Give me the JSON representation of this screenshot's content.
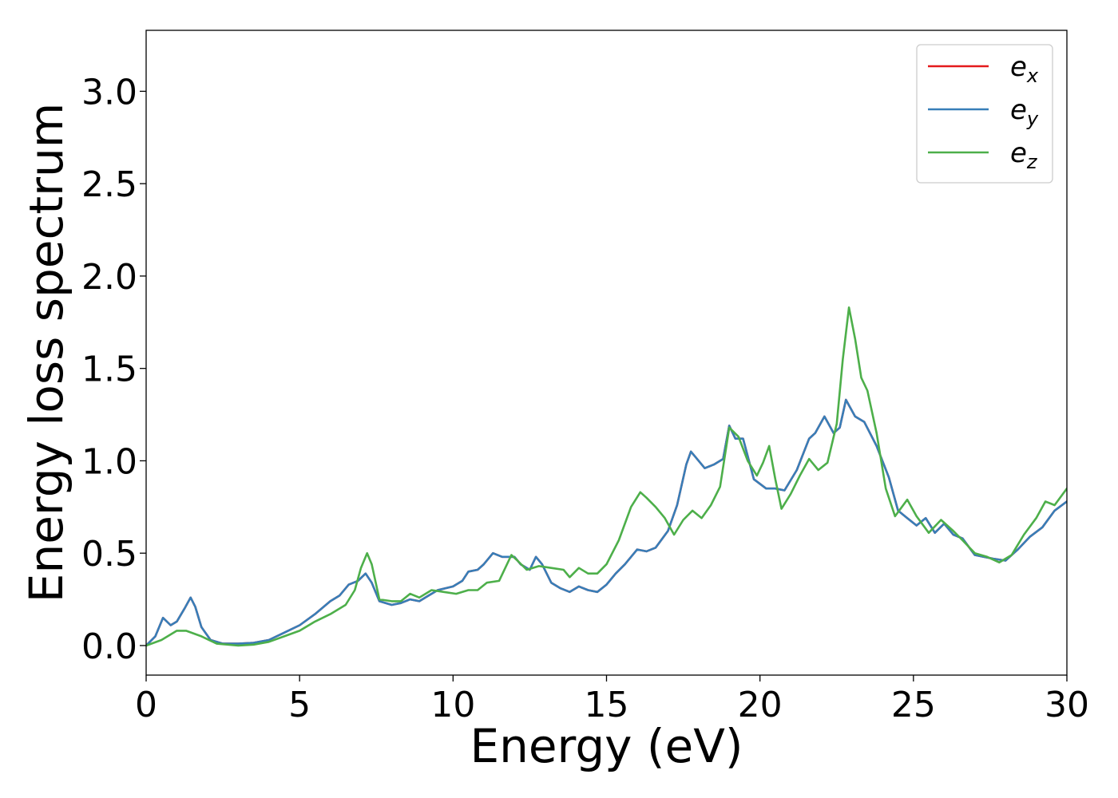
{
  "chart_data": {
    "type": "line",
    "title": "",
    "xlabel": "Energy (eV)",
    "ylabel": "Energy loss spectrum",
    "xlim": [
      0,
      30
    ],
    "ylim": [
      -0.16,
      3.33
    ],
    "xticks": [
      0,
      5,
      10,
      15,
      20,
      25,
      30
    ],
    "xtick_labels": [
      "0",
      "5",
      "10",
      "15",
      "20",
      "25",
      "30"
    ],
    "yticks": [
      0.0,
      0.5,
      1.0,
      1.5,
      2.0,
      2.5,
      3.0
    ],
    "ytick_labels": [
      "0.0",
      "0.5",
      "1.0",
      "1.5",
      "2.0",
      "2.5",
      "3.0"
    ],
    "grid": false,
    "legend_position": "top-right",
    "series": [
      {
        "name": "e_x",
        "legend_main": "e",
        "legend_sub": "x",
        "color": "#e41a1c",
        "points": [
          [
            0,
            0
          ],
          [
            0.3,
            0.05
          ],
          [
            0.55,
            0.15
          ],
          [
            0.8,
            0.11
          ],
          [
            1.0,
            0.13
          ],
          [
            1.25,
            0.2
          ],
          [
            1.45,
            0.26
          ],
          [
            1.6,
            0.21
          ],
          [
            1.8,
            0.1
          ],
          [
            2.1,
            0.03
          ],
          [
            2.5,
            0.01
          ],
          [
            3.0,
            0.01
          ],
          [
            3.5,
            0.015
          ],
          [
            4.0,
            0.03
          ],
          [
            4.5,
            0.07
          ],
          [
            5.0,
            0.11
          ],
          [
            5.5,
            0.17
          ],
          [
            6.0,
            0.24
          ],
          [
            6.3,
            0.27
          ],
          [
            6.6,
            0.33
          ],
          [
            6.9,
            0.35
          ],
          [
            7.15,
            0.39
          ],
          [
            7.35,
            0.34
          ],
          [
            7.6,
            0.24
          ],
          [
            8.0,
            0.22
          ],
          [
            8.3,
            0.23
          ],
          [
            8.6,
            0.25
          ],
          [
            8.9,
            0.24
          ],
          [
            9.2,
            0.27
          ],
          [
            9.5,
            0.3
          ],
          [
            10.0,
            0.32
          ],
          [
            10.3,
            0.35
          ],
          [
            10.5,
            0.4
          ],
          [
            10.8,
            0.41
          ],
          [
            11.0,
            0.44
          ],
          [
            11.3,
            0.5
          ],
          [
            11.6,
            0.48
          ],
          [
            12.0,
            0.48
          ],
          [
            12.2,
            0.44
          ],
          [
            12.5,
            0.41
          ],
          [
            12.7,
            0.48
          ],
          [
            12.9,
            0.44
          ],
          [
            13.2,
            0.34
          ],
          [
            13.5,
            0.31
          ],
          [
            13.8,
            0.29
          ],
          [
            14.1,
            0.32
          ],
          [
            14.4,
            0.3
          ],
          [
            14.7,
            0.29
          ],
          [
            15.0,
            0.33
          ],
          [
            15.3,
            0.39
          ],
          [
            15.6,
            0.44
          ],
          [
            16.0,
            0.52
          ],
          [
            16.3,
            0.51
          ],
          [
            16.6,
            0.53
          ],
          [
            17.0,
            0.62
          ],
          [
            17.3,
            0.76
          ],
          [
            17.6,
            0.98
          ],
          [
            17.75,
            1.05
          ],
          [
            17.9,
            1.02
          ],
          [
            18.2,
            0.96
          ],
          [
            18.5,
            0.98
          ],
          [
            18.8,
            1.01
          ],
          [
            19.0,
            1.19
          ],
          [
            19.2,
            1.12
          ],
          [
            19.45,
            1.12
          ],
          [
            19.8,
            0.9
          ],
          [
            20.2,
            0.85
          ],
          [
            20.5,
            0.85
          ],
          [
            20.8,
            0.84
          ],
          [
            21.2,
            0.95
          ],
          [
            21.6,
            1.12
          ],
          [
            21.8,
            1.15
          ],
          [
            22.1,
            1.24
          ],
          [
            22.4,
            1.15
          ],
          [
            22.6,
            1.18
          ],
          [
            22.8,
            1.33
          ],
          [
            23.1,
            1.24
          ],
          [
            23.4,
            1.21
          ],
          [
            23.8,
            1.08
          ],
          [
            24.2,
            0.91
          ],
          [
            24.5,
            0.73
          ],
          [
            24.8,
            0.69
          ],
          [
            25.1,
            0.65
          ],
          [
            25.4,
            0.69
          ],
          [
            25.7,
            0.61
          ],
          [
            26.0,
            0.66
          ],
          [
            26.3,
            0.6
          ],
          [
            26.6,
            0.58
          ],
          [
            27.0,
            0.49
          ],
          [
            27.3,
            0.48
          ],
          [
            27.6,
            0.47
          ],
          [
            28.0,
            0.46
          ],
          [
            28.4,
            0.52
          ],
          [
            28.8,
            0.59
          ],
          [
            29.2,
            0.64
          ],
          [
            29.6,
            0.73
          ],
          [
            30.0,
            0.78
          ]
        ]
      },
      {
        "name": "e_y",
        "legend_main": "e",
        "legend_sub": "y",
        "color": "#377eb8",
        "points": [
          [
            0,
            0
          ],
          [
            0.3,
            0.05
          ],
          [
            0.55,
            0.15
          ],
          [
            0.8,
            0.11
          ],
          [
            1.0,
            0.13
          ],
          [
            1.25,
            0.2
          ],
          [
            1.45,
            0.26
          ],
          [
            1.6,
            0.21
          ],
          [
            1.8,
            0.1
          ],
          [
            2.1,
            0.03
          ],
          [
            2.5,
            0.01
          ],
          [
            3.0,
            0.01
          ],
          [
            3.5,
            0.015
          ],
          [
            4.0,
            0.03
          ],
          [
            4.5,
            0.07
          ],
          [
            5.0,
            0.11
          ],
          [
            5.5,
            0.17
          ],
          [
            6.0,
            0.24
          ],
          [
            6.3,
            0.27
          ],
          [
            6.6,
            0.33
          ],
          [
            6.9,
            0.35
          ],
          [
            7.15,
            0.39
          ],
          [
            7.35,
            0.34
          ],
          [
            7.6,
            0.24
          ],
          [
            8.0,
            0.22
          ],
          [
            8.3,
            0.23
          ],
          [
            8.6,
            0.25
          ],
          [
            8.9,
            0.24
          ],
          [
            9.2,
            0.27
          ],
          [
            9.5,
            0.3
          ],
          [
            10.0,
            0.32
          ],
          [
            10.3,
            0.35
          ],
          [
            10.5,
            0.4
          ],
          [
            10.8,
            0.41
          ],
          [
            11.0,
            0.44
          ],
          [
            11.3,
            0.5
          ],
          [
            11.6,
            0.48
          ],
          [
            12.0,
            0.48
          ],
          [
            12.2,
            0.44
          ],
          [
            12.5,
            0.41
          ],
          [
            12.7,
            0.48
          ],
          [
            12.9,
            0.44
          ],
          [
            13.2,
            0.34
          ],
          [
            13.5,
            0.31
          ],
          [
            13.8,
            0.29
          ],
          [
            14.1,
            0.32
          ],
          [
            14.4,
            0.3
          ],
          [
            14.7,
            0.29
          ],
          [
            15.0,
            0.33
          ],
          [
            15.3,
            0.39
          ],
          [
            15.6,
            0.44
          ],
          [
            16.0,
            0.52
          ],
          [
            16.3,
            0.51
          ],
          [
            16.6,
            0.53
          ],
          [
            17.0,
            0.62
          ],
          [
            17.3,
            0.76
          ],
          [
            17.6,
            0.98
          ],
          [
            17.75,
            1.05
          ],
          [
            17.9,
            1.02
          ],
          [
            18.2,
            0.96
          ],
          [
            18.5,
            0.98
          ],
          [
            18.8,
            1.01
          ],
          [
            19.0,
            1.19
          ],
          [
            19.2,
            1.12
          ],
          [
            19.45,
            1.12
          ],
          [
            19.8,
            0.9
          ],
          [
            20.2,
            0.85
          ],
          [
            20.5,
            0.85
          ],
          [
            20.8,
            0.84
          ],
          [
            21.2,
            0.95
          ],
          [
            21.6,
            1.12
          ],
          [
            21.8,
            1.15
          ],
          [
            22.1,
            1.24
          ],
          [
            22.4,
            1.15
          ],
          [
            22.6,
            1.18
          ],
          [
            22.8,
            1.33
          ],
          [
            23.1,
            1.24
          ],
          [
            23.4,
            1.21
          ],
          [
            23.8,
            1.08
          ],
          [
            24.2,
            0.91
          ],
          [
            24.5,
            0.73
          ],
          [
            24.8,
            0.69
          ],
          [
            25.1,
            0.65
          ],
          [
            25.4,
            0.69
          ],
          [
            25.7,
            0.61
          ],
          [
            26.0,
            0.66
          ],
          [
            26.3,
            0.6
          ],
          [
            26.6,
            0.58
          ],
          [
            27.0,
            0.49
          ],
          [
            27.3,
            0.48
          ],
          [
            27.6,
            0.47
          ],
          [
            28.0,
            0.46
          ],
          [
            28.4,
            0.52
          ],
          [
            28.8,
            0.59
          ],
          [
            29.2,
            0.64
          ],
          [
            29.6,
            0.73
          ],
          [
            30.0,
            0.78
          ]
        ]
      },
      {
        "name": "e_z",
        "legend_main": "e",
        "legend_sub": "z",
        "color": "#4daf4a",
        "points": [
          [
            0,
            0
          ],
          [
            0.5,
            0.03
          ],
          [
            1.0,
            0.08
          ],
          [
            1.3,
            0.08
          ],
          [
            1.8,
            0.05
          ],
          [
            2.3,
            0.01
          ],
          [
            3.0,
            0.0
          ],
          [
            3.5,
            0.005
          ],
          [
            4.0,
            0.02
          ],
          [
            4.5,
            0.05
          ],
          [
            5.0,
            0.08
          ],
          [
            5.5,
            0.13
          ],
          [
            6.0,
            0.17
          ],
          [
            6.5,
            0.22
          ],
          [
            6.8,
            0.3
          ],
          [
            7.0,
            0.42
          ],
          [
            7.2,
            0.5
          ],
          [
            7.35,
            0.44
          ],
          [
            7.6,
            0.25
          ],
          [
            8.0,
            0.24
          ],
          [
            8.3,
            0.24
          ],
          [
            8.6,
            0.28
          ],
          [
            8.9,
            0.26
          ],
          [
            9.3,
            0.3
          ],
          [
            9.7,
            0.29
          ],
          [
            10.1,
            0.28
          ],
          [
            10.5,
            0.3
          ],
          [
            10.8,
            0.3
          ],
          [
            11.1,
            0.34
          ],
          [
            11.5,
            0.35
          ],
          [
            11.9,
            0.49
          ],
          [
            12.1,
            0.46
          ],
          [
            12.4,
            0.41
          ],
          [
            12.8,
            0.43
          ],
          [
            13.2,
            0.42
          ],
          [
            13.6,
            0.41
          ],
          [
            13.8,
            0.37
          ],
          [
            14.1,
            0.42
          ],
          [
            14.4,
            0.39
          ],
          [
            14.7,
            0.39
          ],
          [
            15.0,
            0.44
          ],
          [
            15.4,
            0.57
          ],
          [
            15.8,
            0.75
          ],
          [
            16.1,
            0.83
          ],
          [
            16.3,
            0.8
          ],
          [
            16.6,
            0.75
          ],
          [
            16.9,
            0.69
          ],
          [
            17.2,
            0.6
          ],
          [
            17.5,
            0.68
          ],
          [
            17.8,
            0.73
          ],
          [
            18.1,
            0.69
          ],
          [
            18.4,
            0.76
          ],
          [
            18.7,
            0.86
          ],
          [
            19.0,
            1.18
          ],
          [
            19.3,
            1.13
          ],
          [
            19.6,
            1.0
          ],
          [
            19.9,
            0.92
          ],
          [
            20.1,
            0.99
          ],
          [
            20.3,
            1.08
          ],
          [
            20.5,
            0.9
          ],
          [
            20.7,
            0.74
          ],
          [
            21.0,
            0.82
          ],
          [
            21.3,
            0.92
          ],
          [
            21.6,
            1.01
          ],
          [
            21.9,
            0.95
          ],
          [
            22.2,
            0.99
          ],
          [
            22.5,
            1.2
          ],
          [
            22.7,
            1.55
          ],
          [
            22.9,
            1.83
          ],
          [
            23.1,
            1.66
          ],
          [
            23.3,
            1.45
          ],
          [
            23.5,
            1.38
          ],
          [
            23.8,
            1.15
          ],
          [
            24.1,
            0.85
          ],
          [
            24.4,
            0.7
          ],
          [
            24.8,
            0.79
          ],
          [
            25.1,
            0.7
          ],
          [
            25.5,
            0.61
          ],
          [
            25.9,
            0.68
          ],
          [
            26.3,
            0.62
          ],
          [
            26.6,
            0.57
          ],
          [
            27.0,
            0.5
          ],
          [
            27.4,
            0.48
          ],
          [
            27.8,
            0.45
          ],
          [
            28.2,
            0.49
          ],
          [
            28.6,
            0.6
          ],
          [
            29.0,
            0.69
          ],
          [
            29.3,
            0.78
          ],
          [
            29.6,
            0.76
          ],
          [
            30.0,
            0.85
          ]
        ]
      }
    ]
  }
}
